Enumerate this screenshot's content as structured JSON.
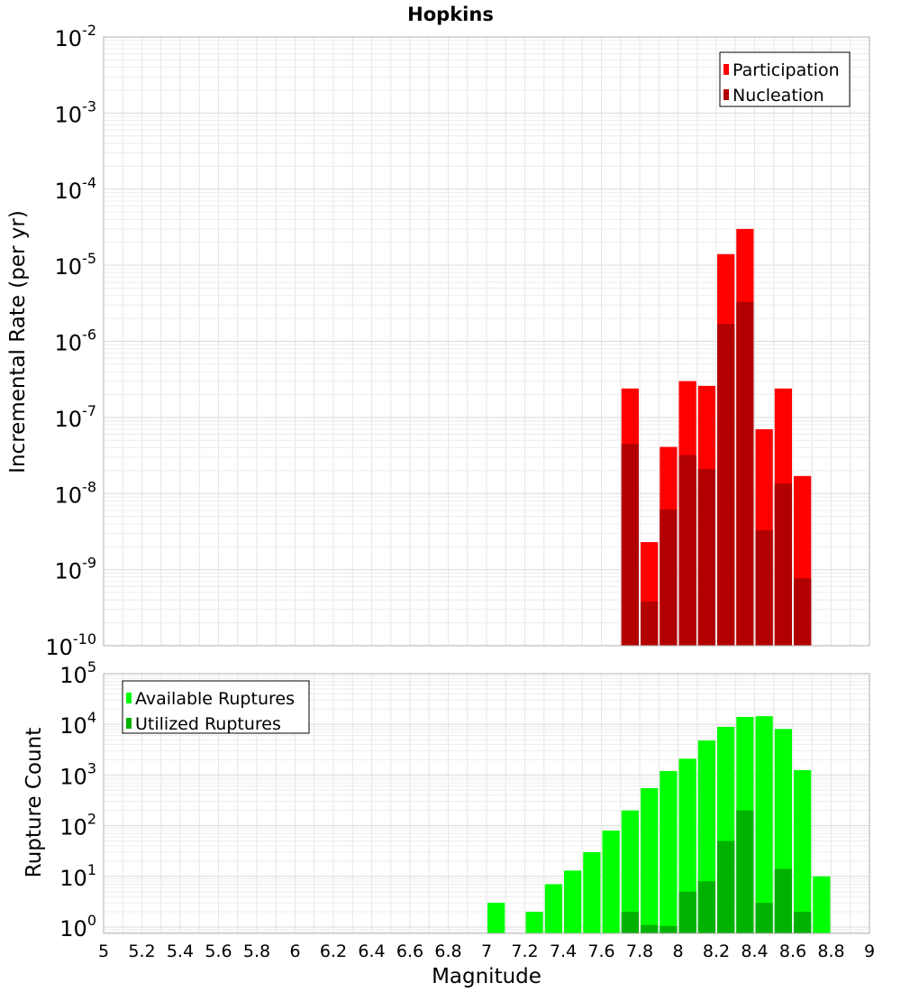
{
  "chart_data": [
    {
      "type": "bar",
      "title": "Hopkins",
      "xlabel": "",
      "ylabel": "Incremental Rate (per yr)",
      "yscale": "log",
      "ylim": [
        1e-10,
        0.01
      ],
      "xlim": [
        5,
        9
      ],
      "grid": true,
      "legend_placement": "top-right",
      "y_tick_labels": [
        {
          "base": "10",
          "exp": "-10"
        },
        {
          "base": "10",
          "exp": "-9"
        },
        {
          "base": "10",
          "exp": "-8"
        },
        {
          "base": "10",
          "exp": "-7"
        },
        {
          "base": "10",
          "exp": "-6"
        },
        {
          "base": "10",
          "exp": "-5"
        },
        {
          "base": "10",
          "exp": "-4"
        },
        {
          "base": "10",
          "exp": "-3"
        },
        {
          "base": "10",
          "exp": "-2"
        }
      ],
      "x": [
        7.75,
        7.85,
        7.95,
        8.05,
        8.15,
        8.25,
        8.35,
        8.45,
        8.55,
        8.65
      ],
      "series": [
        {
          "name": "Participation",
          "color": "#ff0000",
          "values": [
            2.4e-07,
            2.3e-09,
            4.1e-08,
            3e-07,
            2.6e-07,
            1.4e-05,
            3e-05,
            7e-08,
            2.4e-07,
            1.7e-08
          ]
        },
        {
          "name": "Nucleation",
          "color": "#b20000",
          "values": [
            4.5e-08,
            3.8e-10,
            6.2e-09,
            3.2e-08,
            2.1e-08,
            1.7e-06,
            3.3e-06,
            3.3e-09,
            1.35e-08,
            7.7e-10
          ]
        }
      ]
    },
    {
      "type": "bar",
      "xlabel": "Magnitude",
      "ylabel": "Rupture Count",
      "yscale": "log",
      "ylim": [
        0.75,
        100000.0
      ],
      "xlim": [
        5,
        9
      ],
      "grid": true,
      "legend_placement": "top-left",
      "y_tick_labels": [
        {
          "base": "10",
          "exp": "0"
        },
        {
          "base": "10",
          "exp": "1"
        },
        {
          "base": "10",
          "exp": "2"
        },
        {
          "base": "10",
          "exp": "3"
        },
        {
          "base": "10",
          "exp": "4"
        },
        {
          "base": "10",
          "exp": "5"
        }
      ],
      "x_tick_labels": [
        "5",
        "5.2",
        "5.4",
        "5.6",
        "5.8",
        "6",
        "6.2",
        "6.4",
        "6.6",
        "6.8",
        "7",
        "7.2",
        "7.4",
        "7.6",
        "7.8",
        "8",
        "8.2",
        "8.4",
        "8.6",
        "8.8",
        "9"
      ],
      "series": [
        {
          "name": "Available Ruptures",
          "color": "#00ff00",
          "x": [
            7.05,
            7.25,
            7.35,
            7.45,
            7.55,
            7.65,
            7.75,
            7.85,
            7.95,
            8.05,
            8.15,
            8.25,
            8.35,
            8.45,
            8.55,
            8.65,
            8.75
          ],
          "values": [
            3,
            2,
            7,
            13,
            30,
            80,
            200,
            550,
            1200,
            2100,
            4800,
            8900,
            14000,
            14500,
            8100,
            1250,
            10
          ]
        },
        {
          "name": "Utilized Ruptures",
          "color": "#00b200",
          "x": [
            7.75,
            7.85,
            7.95,
            8.05,
            8.15,
            8.25,
            8.35,
            8.45,
            8.55,
            8.65
          ],
          "values": [
            2,
            1.1,
            1.05,
            5,
            8,
            50,
            200,
            3,
            14,
            2
          ]
        }
      ]
    }
  ]
}
